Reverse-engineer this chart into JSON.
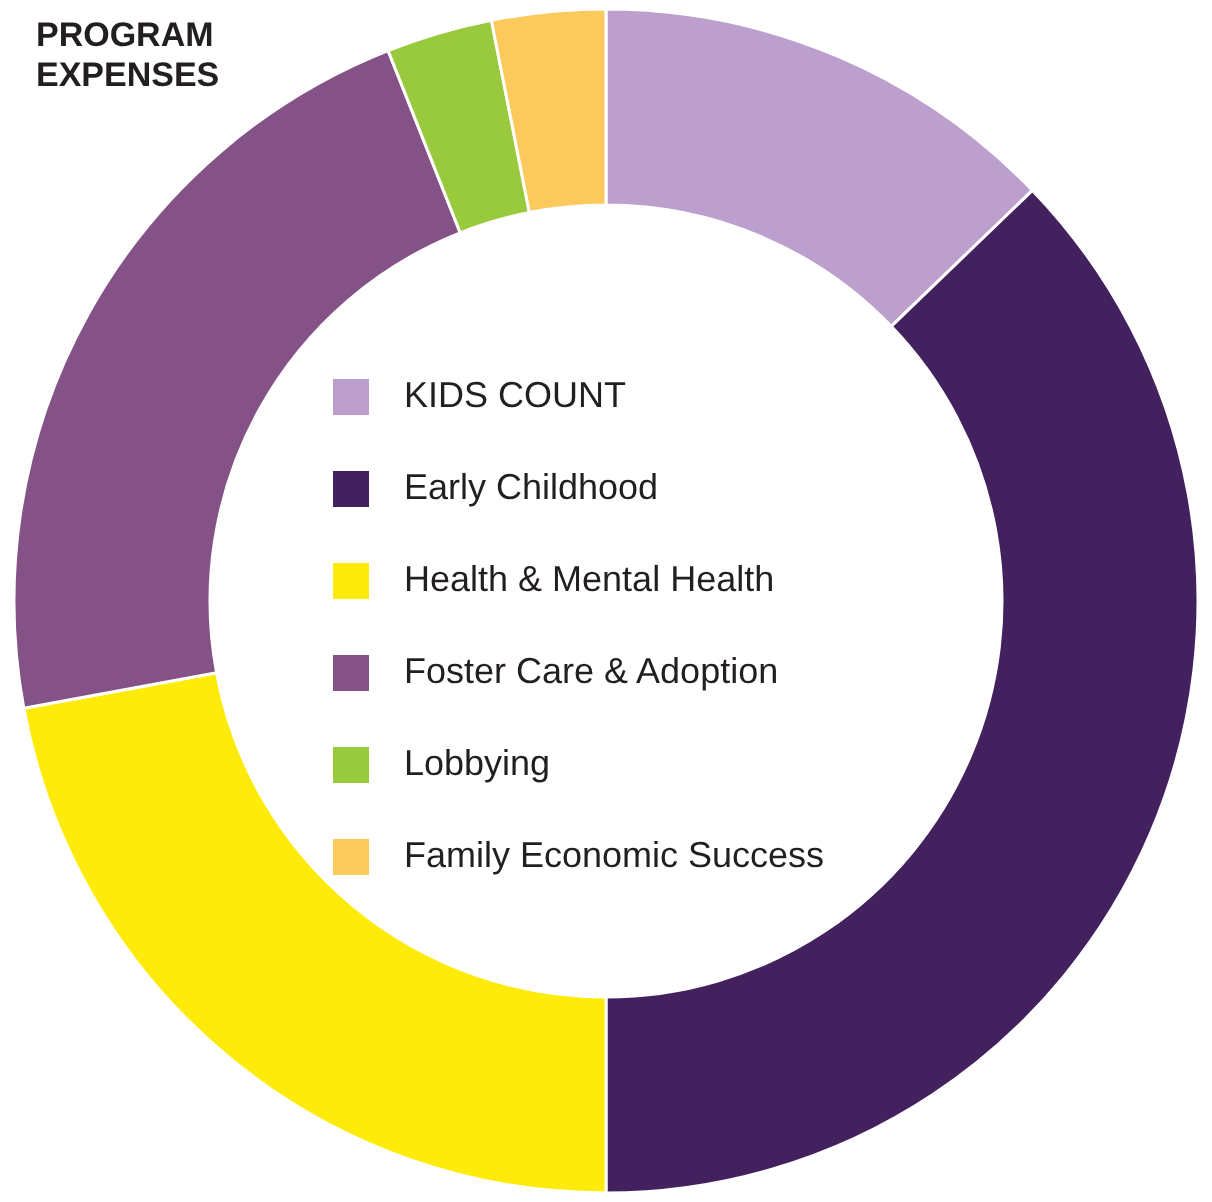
{
  "chart_data": {
    "type": "donut",
    "title": "PROGRAM EXPENSES",
    "categories": [
      "KIDS COUNT",
      "Early Childhood",
      "Health & Mental Health",
      "Foster Care & Adoption",
      "Lobbying",
      "Family Economic Success"
    ],
    "values": [
      12.8,
      37.2,
      22.1,
      21.9,
      2.9,
      3.1
    ],
    "colors": [
      "#bc9fcc",
      "#42215e",
      "#ffeb0a",
      "#845287",
      "#99c93c",
      "#fcc95c"
    ],
    "legend": "center"
  }
}
